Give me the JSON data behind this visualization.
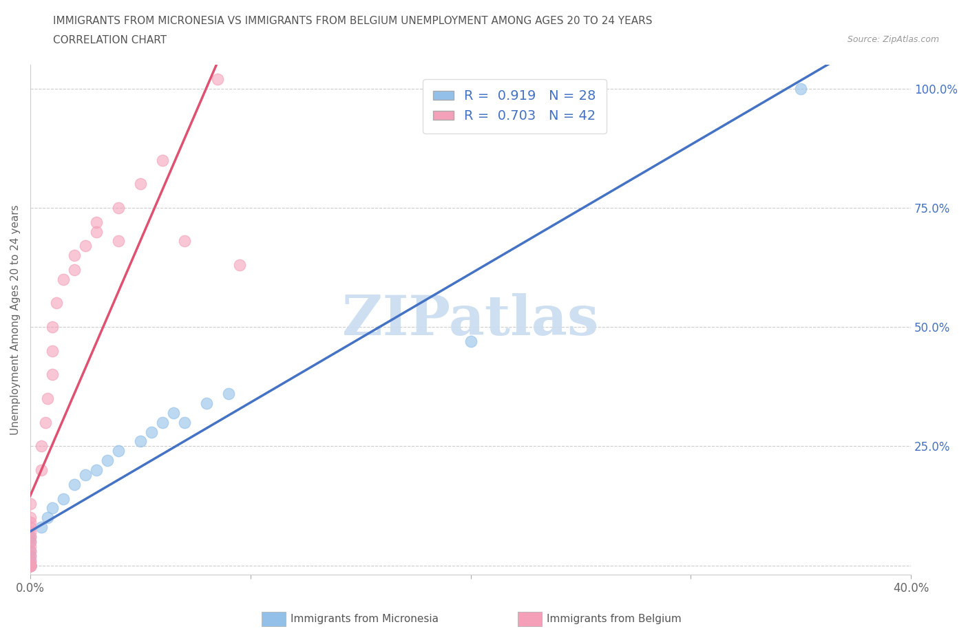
{
  "title_line1": "IMMIGRANTS FROM MICRONESIA VS IMMIGRANTS FROM BELGIUM UNEMPLOYMENT AMONG AGES 20 TO 24 YEARS",
  "title_line2": "CORRELATION CHART",
  "source_text": "Source: ZipAtlas.com",
  "ylabel": "Unemployment Among Ages 20 to 24 years",
  "xlim": [
    0.0,
    0.4
  ],
  "ylim": [
    -0.02,
    1.05
  ],
  "x_ticks": [
    0.0,
    0.1,
    0.2,
    0.3,
    0.4
  ],
  "y_ticks": [
    0.0,
    0.25,
    0.5,
    0.75,
    1.0
  ],
  "micronesia_color": "#92C0E8",
  "belgium_color": "#F4A0B8",
  "micronesia_line_color": "#4472C4",
  "belgium_line_color": "#E05070",
  "R_micronesia": 0.919,
  "N_micronesia": 28,
  "R_belgium": 0.703,
  "N_belgium": 42,
  "legend_label_micronesia": "Immigrants from Micronesia",
  "legend_label_belgium": "Immigrants from Belgium",
  "watermark": "ZIPatlas",
  "micronesia_x": [
    0.0,
    0.0,
    0.0,
    0.0,
    0.0,
    0.0,
    0.0,
    0.0,
    0.0,
    0.0,
    0.005,
    0.008,
    0.01,
    0.015,
    0.02,
    0.025,
    0.03,
    0.035,
    0.04,
    0.05,
    0.055,
    0.06,
    0.065,
    0.07,
    0.08,
    0.09,
    0.2,
    0.35
  ],
  "micronesia_y": [
    0.0,
    0.0,
    0.0,
    0.0,
    0.0,
    0.01,
    0.02,
    0.03,
    0.05,
    0.06,
    0.08,
    0.1,
    0.12,
    0.14,
    0.17,
    0.19,
    0.2,
    0.22,
    0.24,
    0.26,
    0.28,
    0.3,
    0.32,
    0.3,
    0.34,
    0.36,
    0.47,
    1.0
  ],
  "belgium_x": [
    0.0,
    0.0,
    0.0,
    0.0,
    0.0,
    0.0,
    0.0,
    0.0,
    0.0,
    0.0,
    0.0,
    0.0,
    0.0,
    0.0,
    0.0,
    0.0,
    0.0,
    0.0,
    0.0,
    0.0,
    0.0,
    0.005,
    0.005,
    0.007,
    0.008,
    0.01,
    0.01,
    0.01,
    0.012,
    0.015,
    0.02,
    0.02,
    0.025,
    0.03,
    0.03,
    0.04,
    0.04,
    0.05,
    0.06,
    0.07,
    0.085,
    0.095
  ],
  "belgium_y": [
    0.0,
    0.0,
    0.0,
    0.0,
    0.0,
    0.0,
    0.0,
    0.0,
    0.0,
    0.0,
    0.01,
    0.02,
    0.03,
    0.04,
    0.05,
    0.06,
    0.07,
    0.08,
    0.09,
    0.1,
    0.13,
    0.2,
    0.25,
    0.3,
    0.35,
    0.4,
    0.45,
    0.5,
    0.55,
    0.6,
    0.62,
    0.65,
    0.67,
    0.7,
    0.72,
    0.68,
    0.75,
    0.8,
    0.85,
    0.68,
    1.02,
    0.63
  ]
}
